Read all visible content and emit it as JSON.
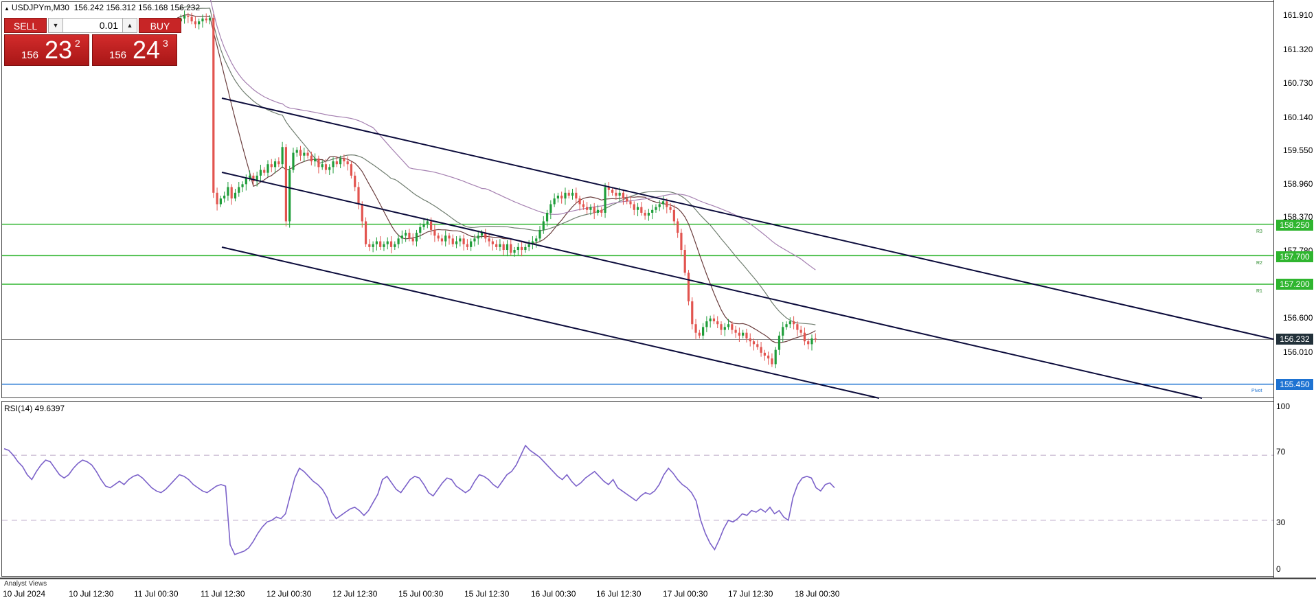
{
  "header": {
    "symbol_tf": "USDJPYm,M30",
    "ohlc": "156.242 156.312 156.168 156.232"
  },
  "trade_panel": {
    "sell_label": "SELL",
    "buy_label": "BUY",
    "lot": "0.01",
    "sell_price": {
      "prefix": "156",
      "big": "23",
      "sup": "2"
    },
    "buy_price": {
      "prefix": "156",
      "big": "24",
      "sup": "3"
    }
  },
  "price_axis": {
    "labels": [
      "161.910",
      "161.320",
      "160.730",
      "160.140",
      "159.550",
      "158.960",
      "158.370",
      "157.780",
      "156.600",
      "156.010"
    ],
    "current_price": "156.232",
    "levels": [
      {
        "price": "158.250",
        "tag": "R3",
        "color": "#2fb52f"
      },
      {
        "price": "157.700",
        "tag": "R2",
        "color": "#2fb52f"
      },
      {
        "price": "157.200",
        "tag": "R1",
        "color": "#2fb52f"
      },
      {
        "price": "155.450",
        "tag": "Pivot",
        "color": "#1e73d2"
      }
    ]
  },
  "rsi": {
    "label": "RSI(14) 49.6397",
    "axis_labels": [
      "100",
      "70",
      "30",
      "0"
    ]
  },
  "time_axis": [
    "10 Jul 2024",
    "10 Jul 12:30",
    "11 Jul 00:30",
    "11 Jul 12:30",
    "12 Jul 00:30",
    "12 Jul 12:30",
    "15 Jul 00:30",
    "15 Jul 12:30",
    "16 Jul 00:30",
    "16 Jul 12:30",
    "17 Jul 00:30",
    "17 Jul 12:30",
    "18 Jul 00:30"
  ],
  "bottom_tab": "Analyst Views",
  "colors": {
    "bull": "#1f9d3a",
    "bear": "#e2544f",
    "ma_fast": "#6a3d3d",
    "ma_mid": "#6f7d6f",
    "ma_slow": "#a47fb0",
    "rsi_line": "#7b61c9",
    "channel": "#0b0b3b"
  },
  "chart_data": {
    "type": "line",
    "title": "USDJPYm,M30",
    "price_range": [
      155.3,
      162.1
    ],
    "candles_close": [
      161.8,
      161.85,
      161.9,
      161.88,
      161.8,
      161.75,
      161.8,
      161.85,
      161.82,
      161.86,
      158.8,
      158.6,
      158.7,
      158.75,
      158.9,
      158.7,
      158.8,
      158.9,
      158.95,
      159.05,
      159.1,
      159.0,
      159.1,
      159.2,
      159.15,
      159.3,
      159.25,
      159.35,
      159.3,
      159.6,
      158.3,
      159.2,
      159.5,
      159.55,
      159.45,
      159.5,
      159.45,
      159.35,
      159.4,
      159.25,
      159.3,
      159.2,
      159.25,
      159.35,
      159.3,
      159.4,
      159.35,
      159.3,
      159.1,
      158.9,
      158.6,
      158.3,
      157.9,
      157.85,
      157.9,
      157.95,
      157.85,
      157.9,
      157.95,
      157.85,
      157.9,
      158.0,
      158.05,
      158.1,
      158.0,
      157.95,
      158.1,
      158.2,
      158.25,
      158.3,
      158.15,
      158.05,
      158.0,
      157.95,
      158.05,
      158.0,
      157.9,
      157.95,
      158.0,
      157.9,
      157.85,
      157.95,
      158.0,
      158.05,
      158.1,
      158.0,
      157.95,
      157.9,
      157.85,
      157.9,
      157.8,
      157.9,
      157.75,
      157.8,
      157.85,
      157.8,
      157.85,
      157.9,
      157.95,
      158.0,
      158.15,
      158.3,
      158.45,
      158.6,
      158.7,
      158.75,
      158.7,
      158.8,
      158.75,
      158.8,
      158.7,
      158.6,
      158.55,
      158.5,
      158.55,
      158.45,
      158.5,
      158.45,
      158.9,
      158.85,
      158.8,
      158.75,
      158.8,
      158.7,
      158.65,
      158.6,
      158.5,
      158.55,
      158.45,
      158.4,
      158.45,
      158.5,
      158.55,
      158.6,
      158.65,
      158.55,
      158.5,
      158.3,
      158.1,
      157.8,
      157.4,
      156.9,
      156.5,
      156.35,
      156.3,
      156.45,
      156.55,
      156.6,
      156.55,
      156.5,
      156.4,
      156.45,
      156.5,
      156.4,
      156.35,
      156.3,
      156.35,
      156.25,
      156.2,
      156.15,
      156.1,
      156.0,
      155.95,
      155.9,
      155.8,
      156.05,
      156.3,
      156.45,
      156.5,
      156.55,
      156.5,
      156.4,
      156.35,
      156.2,
      156.15,
      156.25,
      156.232
    ],
    "moving_averages": [
      "fast",
      "mid",
      "slow"
    ],
    "channel_lines": 3,
    "rsi_values": [
      74,
      73,
      70,
      66,
      63,
      58,
      55,
      60,
      64,
      67,
      66,
      62,
      58,
      56,
      58,
      62,
      65,
      67,
      66,
      64,
      60,
      55,
      51,
      50,
      52,
      54,
      52,
      55,
      57,
      58,
      56,
      53,
      50,
      48,
      47,
      49,
      52,
      55,
      58,
      57,
      55,
      52,
      50,
      48,
      47,
      49,
      51,
      52,
      51,
      15,
      9,
      10,
      11,
      13,
      17,
      22,
      26,
      29,
      30,
      32,
      31,
      34,
      45,
      56,
      62,
      60,
      57,
      54,
      52,
      49,
      44,
      35,
      31,
      33,
      35,
      37,
      38,
      36,
      33,
      36,
      41,
      46,
      55,
      57,
      53,
      49,
      47,
      51,
      55,
      57,
      56,
      52,
      47,
      45,
      49,
      53,
      56,
      55,
      51,
      49,
      47,
      49,
      54,
      58,
      57,
      55,
      52,
      50,
      54,
      58,
      60,
      64,
      70,
      76,
      73,
      71,
      69,
      66,
      63,
      60,
      57,
      55,
      58,
      54,
      51,
      53,
      56,
      58,
      60,
      57,
      54,
      52,
      55,
      50,
      48,
      46,
      44,
      42,
      45,
      47,
      46,
      48,
      52,
      58,
      62,
      59,
      55,
      52,
      50,
      47,
      42,
      30,
      22,
      16,
      12,
      18,
      25,
      30,
      29,
      31,
      34,
      33,
      36,
      35,
      37,
      35,
      38,
      34,
      36,
      32,
      30,
      44,
      52,
      56,
      57,
      56,
      50,
      48,
      52,
      53,
      50
    ]
  }
}
